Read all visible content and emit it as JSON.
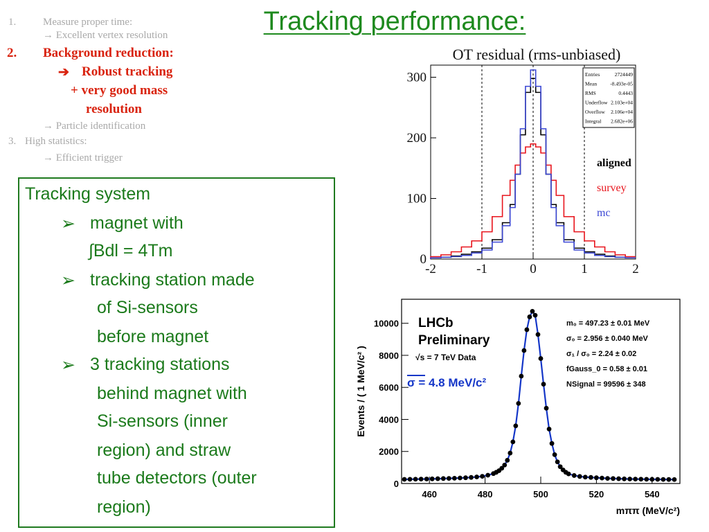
{
  "title": "Tracking performance:",
  "outline": {
    "item1_num": "1.",
    "item1_text": "Measure proper time:",
    "item1_sub": "→ Excellent vertex resolution",
    "item2_num": "2.",
    "item2_text": "Background reduction:",
    "item2_sub1": "Robust tracking",
    "item2_sub2": "+ very good mass",
    "item2_sub3": "resolution",
    "item2_sub4": "→ Particle identification",
    "item3_num": "3.",
    "item3_text": "High statistics:",
    "item3_sub": "→ Efficient trigger"
  },
  "tracking_box": {
    "heading": "Tracking system",
    "b1_l1": "magnet with",
    "b1_l2": "∫Bdl = 4Tm",
    "b2_l1": "tracking station made",
    "b2_l2": "of  Si-sensors",
    "b2_l3": "before magnet",
    "b3_l1": "3 tracking stations",
    "b3_l2": "behind magnet with",
    "b3_l3": "Si-sensors (inner",
    "b3_l4": "region) and straw",
    "b3_l5": "tube detectors (outer",
    "b3_l6": "region)"
  },
  "chart_data": [
    {
      "type": "line",
      "title": "OT residual (rms-unbiased)",
      "xlim": [
        -2,
        2
      ],
      "ylim": [
        0,
        320
      ],
      "x_ticks": [
        "-2",
        "-1",
        "0",
        "1",
        "2"
      ],
      "y_ticks": [
        "0",
        "100",
        "200",
        "300"
      ],
      "legend_position": "right",
      "stats": [
        {
          "label": "Entries",
          "value": "2724449"
        },
        {
          "label": "Mean",
          "value": "-8.493e-05"
        },
        {
          "label": "RMS",
          "value": "0.4443"
        },
        {
          "label": "Underflow",
          "value": "2.103e+04"
        },
        {
          "label": "Overflow",
          "value": "2.106e+04"
        },
        {
          "label": "Integral",
          "value": "2.682e+06"
        }
      ],
      "x": [
        -1.9,
        -1.7,
        -1.5,
        -1.3,
        -1.1,
        -0.9,
        -0.7,
        -0.5,
        -0.4,
        -0.3,
        -0.2,
        -0.1,
        0,
        0.1,
        0.2,
        0.3,
        0.4,
        0.5,
        0.7,
        0.9,
        1.1,
        1.3,
        1.5,
        1.7,
        1.9
      ],
      "series": [
        {
          "name": "aligned",
          "color": "#000000",
          "values": [
            2,
            3,
            5,
            8,
            12,
            18,
            32,
            60,
            90,
            140,
            205,
            275,
            298,
            275,
            205,
            140,
            90,
            60,
            32,
            18,
            12,
            8,
            5,
            3,
            2
          ]
        },
        {
          "name": "survey",
          "color": "#e8141c",
          "values": [
            4,
            7,
            12,
            20,
            30,
            45,
            70,
            105,
            130,
            155,
            175,
            185,
            190,
            185,
            175,
            155,
            130,
            105,
            70,
            45,
            30,
            20,
            12,
            7,
            4
          ]
        },
        {
          "name": "mc",
          "color": "#3b47d4",
          "values": [
            2,
            3,
            4,
            6,
            10,
            15,
            28,
            55,
            85,
            140,
            215,
            285,
            312,
            285,
            215,
            140,
            85,
            55,
            28,
            15,
            10,
            6,
            4,
            3,
            2
          ]
        }
      ]
    },
    {
      "type": "scatter",
      "xlabel": "mππ (MeV/c²)",
      "ylabel": "Events / ( 1 MeV/c² )",
      "xlim": [
        450,
        550
      ],
      "ylim": [
        0,
        11500
      ],
      "x_ticks": [
        "460",
        "480",
        "500",
        "520",
        "540"
      ],
      "y_ticks": [
        "0",
        "2000",
        "4000",
        "6000",
        "8000",
        "10000"
      ],
      "label_main1": "LHCb",
      "label_main2": "Preliminary",
      "label_energy": "√s = 7 TeV Data",
      "sigma_label": "σ = 4.8 MeV/c²",
      "fit_params": [
        "m₀ = 497.23 ± 0.01 MeV",
        "σ₀ = 2.956 ± 0.040 MeV",
        "σ₁ / σ₀ = 2.24 ± 0.02",
        "fGauss_0 = 0.58 ± 0.01",
        "NSignal = 99596 ± 348"
      ],
      "mean": 497.23,
      "points_x": [
        451,
        453,
        455,
        457,
        459,
        461,
        463,
        465,
        467,
        469,
        471,
        473,
        475,
        477,
        479,
        481,
        483,
        484,
        485,
        486,
        487,
        488,
        489,
        490,
        491,
        492,
        493,
        494,
        495,
        496,
        497,
        498,
        499,
        500,
        501,
        502,
        503,
        504,
        505,
        506,
        507,
        508,
        509,
        510,
        512,
        514,
        516,
        518,
        520,
        522,
        524,
        526,
        528,
        530,
        532,
        534,
        536,
        538,
        540,
        542,
        544,
        546,
        548
      ],
      "points_y": [
        260,
        265,
        270,
        275,
        280,
        290,
        300,
        310,
        320,
        330,
        345,
        360,
        380,
        410,
        450,
        520,
        620,
        700,
        800,
        950,
        1150,
        1450,
        1900,
        2600,
        3600,
        5000,
        6700,
        8300,
        9600,
        10400,
        10750,
        10500,
        9300,
        7800,
        6200,
        4700,
        3400,
        2500,
        1800,
        1350,
        1050,
        850,
        700,
        600,
        500,
        440,
        400,
        380,
        360,
        340,
        320,
        310,
        300,
        290,
        280,
        275,
        270,
        265,
        260,
        258,
        255,
        252,
        250
      ],
      "colors": {
        "fit": "#1436c8",
        "points": "#000000",
        "sigma": "#1436c8"
      }
    }
  ]
}
